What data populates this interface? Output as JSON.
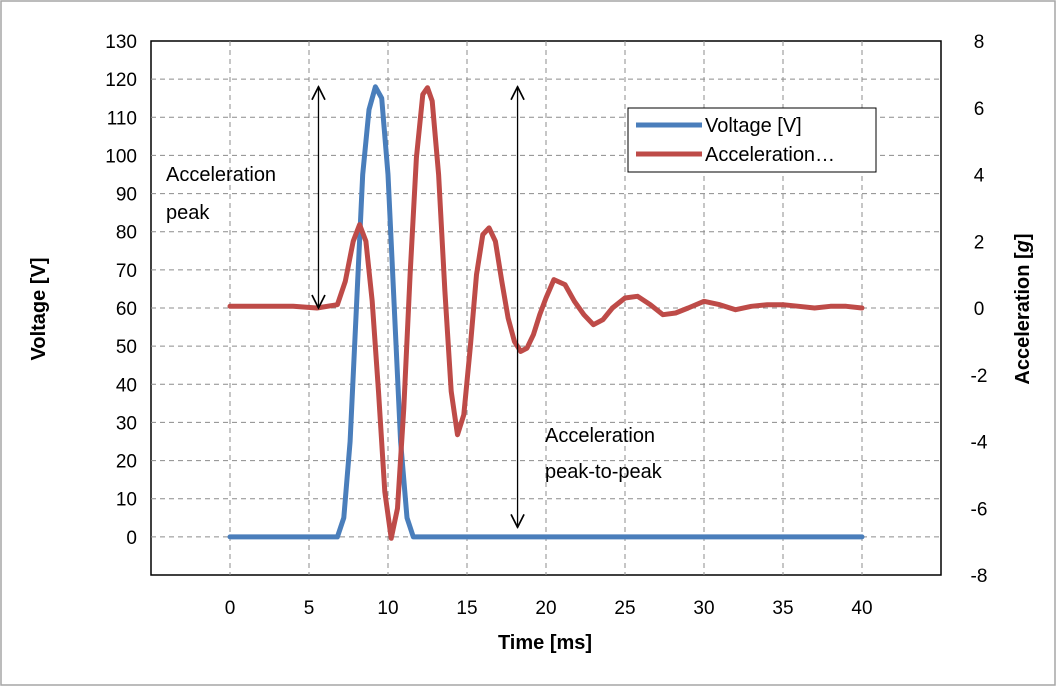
{
  "chart_data": {
    "type": "line",
    "title": "",
    "xlabel": "Time [ms]",
    "ylabel_left": "Voltage [V]",
    "ylabel_right_parts": [
      "Acceleration  [",
      "g",
      "]"
    ],
    "xlim": [
      -5,
      45
    ],
    "ylim_left": [
      -10,
      130
    ],
    "ylim_right": [
      -8,
      8
    ],
    "x_ticks": [
      0,
      5,
      10,
      15,
      20,
      25,
      30,
      35,
      40
    ],
    "x_tick_labels": [
      "0",
      "5",
      "10",
      "15",
      "20",
      "25",
      "30",
      "35",
      "40"
    ],
    "y_left_ticks": [
      0,
      10,
      20,
      30,
      40,
      50,
      60,
      70,
      80,
      90,
      100,
      110,
      120,
      130
    ],
    "y_left_tick_labels": [
      "0",
      "10",
      "20",
      "30",
      "40",
      "50",
      "60",
      "70",
      "80",
      "90",
      "100",
      "110",
      "120",
      "130"
    ],
    "y_right_ticks": [
      -8,
      -6,
      -4,
      -2,
      0,
      2,
      4,
      6,
      8
    ],
    "y_right_tick_labels": [
      "-8",
      "-6",
      "-4",
      "-2",
      "0",
      "2",
      "4",
      "6",
      "8"
    ],
    "grid": true,
    "legend_position": "top-right",
    "series": [
      {
        "name": "Voltage [V]",
        "axis": "left",
        "color": "#4a7ebb",
        "x": [
          0,
          5,
          6.8,
          7.2,
          7.6,
          8.0,
          8.4,
          8.8,
          9.2,
          9.6,
          10.0,
          10.4,
          10.8,
          11.2,
          11.6,
          12,
          20,
          30,
          40
        ],
        "y": [
          0,
          0,
          0,
          5,
          25,
          60,
          95,
          112,
          118,
          115,
          95,
          60,
          25,
          5,
          0,
          0,
          0,
          0,
          0
        ]
      },
      {
        "name": "Acceleration…",
        "axis": "right",
        "color": "#be4b48",
        "x": [
          0,
          2,
          4,
          5.5,
          6.8,
          7.3,
          7.8,
          8.2,
          8.6,
          9.0,
          9.4,
          9.8,
          10.2,
          10.6,
          11.0,
          11.4,
          11.8,
          12.2,
          12.5,
          12.8,
          13.2,
          13.6,
          14.0,
          14.4,
          14.8,
          15.2,
          15.6,
          16.0,
          16.4,
          16.8,
          17.2,
          17.6,
          18.0,
          18.4,
          18.8,
          19.2,
          19.6,
          20.0,
          20.5,
          21.2,
          21.8,
          22.4,
          23.0,
          23.6,
          24.2,
          25.0,
          25.8,
          26.6,
          27.4,
          28.2,
          29.0,
          30.0,
          31.0,
          32.0,
          33.0,
          34.0,
          35.0,
          36.0,
          37.0,
          38.0,
          39.0,
          40.0
        ],
        "y": [
          0.05,
          0.05,
          0.05,
          0.0,
          0.1,
          0.8,
          2.0,
          2.5,
          2.0,
          0.2,
          -2.5,
          -5.5,
          -6.9,
          -6.0,
          -3.0,
          1.0,
          4.5,
          6.4,
          6.6,
          6.2,
          4.0,
          0.5,
          -2.5,
          -3.8,
          -3.2,
          -1.2,
          1.0,
          2.2,
          2.4,
          2.0,
          0.8,
          -0.3,
          -1.0,
          -1.3,
          -1.2,
          -0.8,
          -0.2,
          0.3,
          0.85,
          0.7,
          0.2,
          -0.2,
          -0.5,
          -0.35,
          0.0,
          0.3,
          0.35,
          0.1,
          -0.2,
          -0.15,
          0.0,
          0.2,
          0.1,
          -0.05,
          0.05,
          0.1,
          0.1,
          0.05,
          0.0,
          0.05,
          0.05,
          0.0
        ]
      }
    ],
    "annotations": [
      {
        "lines": [
          "Acceleration",
          "peak"
        ]
      },
      {
        "lines": [
          "Acceleration",
          "peak-to-peak"
        ]
      }
    ]
  }
}
